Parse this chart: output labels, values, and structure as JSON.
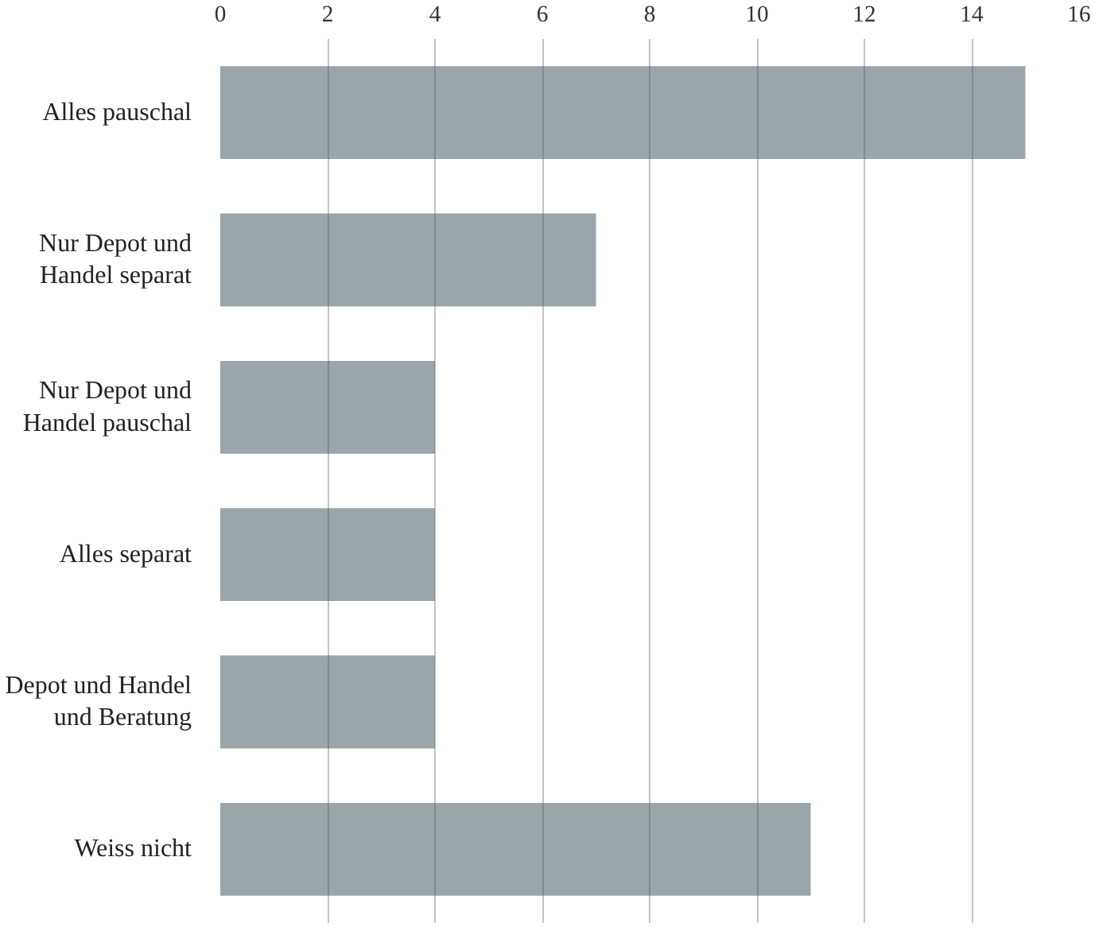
{
  "chart_data": {
    "type": "bar",
    "orientation": "horizontal",
    "categories": [
      "Alles pauschal",
      "Nur Depot und Handel separat",
      "Nur Depot und Handel pauschal",
      "Alles separat",
      "Depot und Handel und Beratung",
      "Weiss nicht"
    ],
    "values": [
      15,
      7,
      4,
      4,
      4,
      11
    ],
    "color": "#9aa6aa",
    "xlim": [
      0,
      16
    ],
    "xticks": [
      0,
      2,
      4,
      6,
      8,
      10,
      12,
      14,
      16
    ],
    "grid": "x"
  }
}
